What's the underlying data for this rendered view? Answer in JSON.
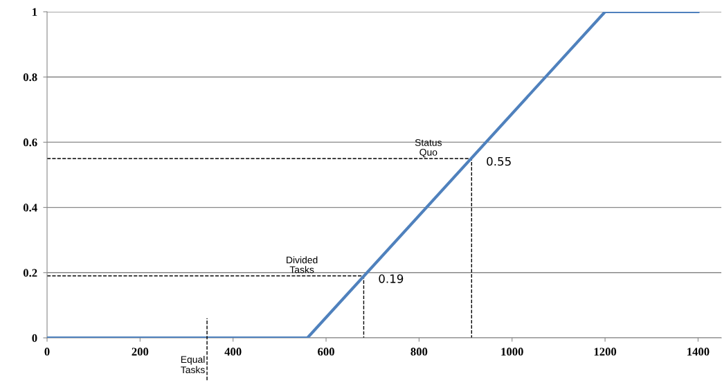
{
  "chart_data": {
    "type": "line",
    "x": [
      0,
      560,
      1200,
      1400
    ],
    "series": [
      {
        "color": "#4f81bd",
        "values": [
          0,
          0,
          1,
          1
        ]
      },
      {
        "x": [
          0,
          913,
          913
        ],
        "values": [
          0.55,
          0.55,
          0
        ],
        "color": "#000000",
        "line_style": "dashed"
      },
      {
        "x": [
          0,
          681,
          681
        ],
        "values": [
          0.19,
          0.19,
          0
        ],
        "color": "#000000",
        "line_style": "dashed"
      }
    ],
    "xlim": [
      0,
      1450
    ],
    "ylim": [
      0,
      1
    ],
    "xticks": [
      0,
      200,
      400,
      600,
      800,
      1000,
      1200,
      1400
    ],
    "yticks": [
      0,
      {
        "value": 0.2,
        "label": "0.2"
      },
      {
        "value": 0.4,
        "label": "0.4"
      },
      {
        "value": 0.6,
        "label": "0.6"
      },
      {
        "value": 0.8,
        "label": "0.8"
      },
      1
    ],
    "grid": "y",
    "marker": "none",
    "line_style": "solid",
    "ref_lines": [
      {
        "axis": "x",
        "value": 344,
        "label": "Equal Tasks",
        "color": "#000000",
        "line_style": "dashed"
      }
    ],
    "annotations": [
      {
        "text": "Status Quo",
        "x": 820,
        "y": 0.55
      },
      {
        "text": "0.55",
        "x": 913,
        "y": 0.55
      },
      {
        "text": "Divided Tasks",
        "x": 548,
        "y": 0.19
      },
      {
        "text": "0.19",
        "x": 681,
        "y": 0.19
      }
    ]
  }
}
